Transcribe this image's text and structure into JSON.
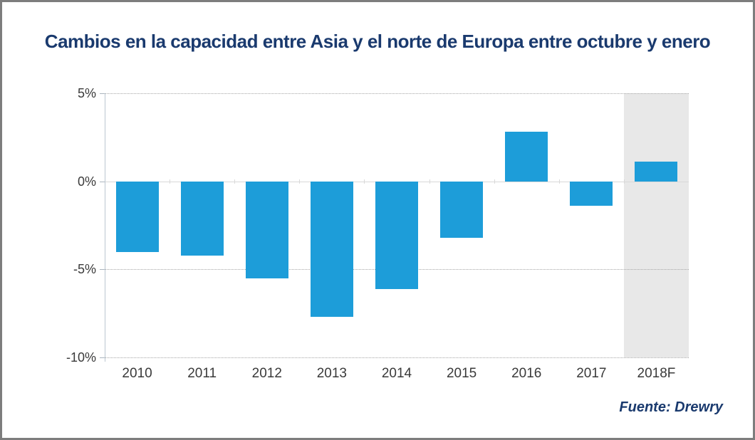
{
  "page": {
    "title": "Cambios en la capacidad entre Asia y el norte de Europa entre octubre y enero",
    "source": "Fuente: Drewry"
  },
  "colors": {
    "title_navy": "#1a3a6e",
    "bar_blue": "#1d9dd9",
    "forecast_band_gray": "#e8e8e8",
    "page_border_gray": "#7d7d7d"
  },
  "chart_data": {
    "type": "bar",
    "title": "Cambios en la capacidad entre Asia y el norte de Europa entre octubre y enero",
    "categories": [
      "2010",
      "2011",
      "2012",
      "2013",
      "2014",
      "2015",
      "2016",
      "2017",
      "2018F"
    ],
    "values": [
      -4.0,
      -4.2,
      -5.5,
      -7.7,
      -6.1,
      -3.2,
      2.8,
      -1.4,
      1.1
    ],
    "unit": "%",
    "xlabel": "",
    "ylabel": "",
    "ylim": [
      -10,
      5
    ],
    "yticks": [
      5,
      0,
      -5,
      -10
    ],
    "ytick_labels": [
      "5%",
      "0%",
      "-5%",
      "-10%"
    ],
    "grid": "horizontal-dotted",
    "legend": "none",
    "highlight_category": "2018F",
    "highlight_style": "light-gray-background-band",
    "source": "Fuente: Drewry"
  }
}
